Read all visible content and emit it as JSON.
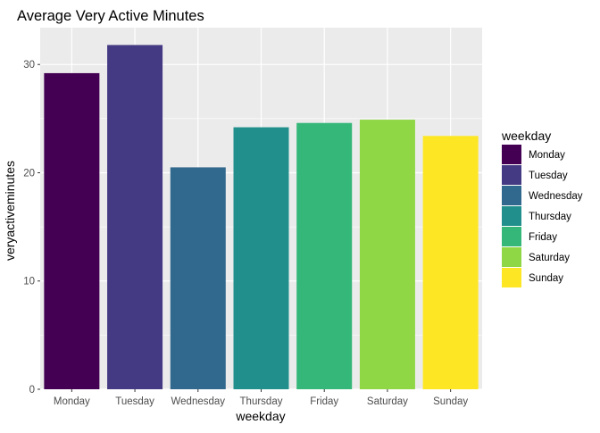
{
  "chart_data": {
    "type": "bar",
    "title": "Average Very Active Minutes",
    "xlabel": "weekday",
    "ylabel": "veryactiveminutes",
    "categories": [
      "Monday",
      "Tuesday",
      "Wednesday",
      "Thursday",
      "Friday",
      "Saturday",
      "Sunday"
    ],
    "values": [
      29.2,
      31.8,
      20.5,
      24.2,
      24.6,
      24.9,
      23.4
    ],
    "ylim": [
      0,
      33.4
    ],
    "yticks": [
      0,
      10,
      20,
      30
    ],
    "grid": true,
    "legend": {
      "title": "weekday",
      "position": "right"
    },
    "colors": [
      "#440154",
      "#443A83",
      "#31688E",
      "#21908C",
      "#35B779",
      "#8FD744",
      "#FDE725"
    ],
    "panel_background": "#EBEBEB",
    "grid_color": "#FFFFFF"
  }
}
